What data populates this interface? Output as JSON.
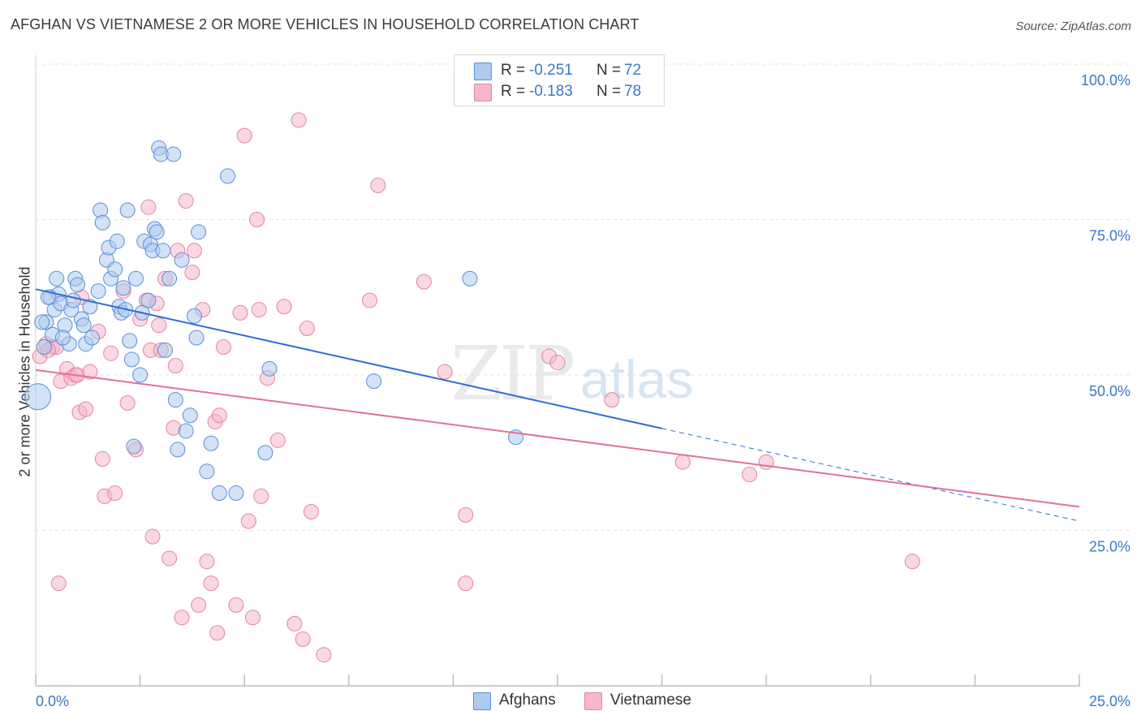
{
  "title": "AFGHAN VS VIETNAMESE 2 OR MORE VEHICLES IN HOUSEHOLD CORRELATION CHART",
  "source": "Source: ZipAtlas.com",
  "watermark": {
    "zip": "ZIP",
    "atlas": "atlas"
  },
  "colors": {
    "afghans_fill": "#aecbef",
    "afghans_stroke": "#5b8fd6",
    "afghans_line": "#2e6fcf",
    "vietnamese_fill": "#f6b7ca",
    "vietnamese_stroke": "#e484a5",
    "vietnamese_line": "#e0709a",
    "axis_text": "#3a78c9",
    "grid": "#e3e3e3"
  },
  "legend_top": [
    {
      "r_label": "R =",
      "r_value": "-0.251",
      "n_label": "N =",
      "n_value": "72"
    },
    {
      "r_label": "R =",
      "r_value": "-0.183",
      "n_label": "N =",
      "n_value": "78"
    }
  ],
  "legend_bottom": [
    "Afghans",
    "Vietnamese"
  ],
  "chart_data": {
    "type": "scatter",
    "title": "AFGHAN VS VIETNAMESE 2 OR MORE VEHICLES IN HOUSEHOLD CORRELATION CHART",
    "ylabel": "2 or more Vehicles in Household",
    "xlabel": "",
    "xlim": [
      0,
      25
    ],
    "ylim": [
      0,
      100
    ],
    "x_tick_labels": [
      "0.0%",
      "25.0%"
    ],
    "y_tick_labels": [
      "100.0%",
      "75.0%",
      "50.0%",
      "25.0%"
    ],
    "y_ticks": [
      100,
      75,
      50,
      25
    ],
    "grid": true,
    "legend_position": "top-center",
    "series": [
      {
        "name": "Afghans",
        "r": -0.251,
        "n": 72,
        "trend": {
          "x0": 0,
          "y0": 63.8,
          "x1": 15,
          "y1": 41.4,
          "dashed_to_x": 25,
          "dashed_to_y": 26.5
        },
        "points": [
          [
            0.05,
            46.5
          ],
          [
            0.2,
            54.5
          ],
          [
            0.25,
            58.5
          ],
          [
            0.35,
            62.5
          ],
          [
            0.4,
            56.5
          ],
          [
            0.45,
            60.5
          ],
          [
            0.5,
            65.5
          ],
          [
            0.55,
            63
          ],
          [
            0.6,
            61.5
          ],
          [
            0.7,
            58
          ],
          [
            0.8,
            55
          ],
          [
            0.85,
            60.5
          ],
          [
            0.95,
            65.5
          ],
          [
            1.0,
            64.5
          ],
          [
            1.1,
            59
          ],
          [
            1.2,
            55
          ],
          [
            1.3,
            61
          ],
          [
            1.35,
            56
          ],
          [
            1.5,
            63.5
          ],
          [
            1.55,
            76.5
          ],
          [
            1.6,
            74.5
          ],
          [
            1.7,
            68.5
          ],
          [
            1.75,
            70.5
          ],
          [
            1.8,
            65.5
          ],
          [
            1.9,
            67
          ],
          [
            1.95,
            71.5
          ],
          [
            2.0,
            61
          ],
          [
            2.05,
            60
          ],
          [
            2.1,
            64
          ],
          [
            2.15,
            60.5
          ],
          [
            2.2,
            76.5
          ],
          [
            2.25,
            55.5
          ],
          [
            2.3,
            52.5
          ],
          [
            2.35,
            38.5
          ],
          [
            2.4,
            65.5
          ],
          [
            2.5,
            50
          ],
          [
            2.6,
            71.5
          ],
          [
            2.7,
            62
          ],
          [
            2.75,
            71
          ],
          [
            2.8,
            70
          ],
          [
            2.85,
            73.5
          ],
          [
            2.9,
            73
          ],
          [
            2.95,
            86.5
          ],
          [
            3.0,
            85.5
          ],
          [
            3.1,
            54
          ],
          [
            3.2,
            65.5
          ],
          [
            3.3,
            85.5
          ],
          [
            3.35,
            46
          ],
          [
            3.4,
            38
          ],
          [
            3.5,
            68.5
          ],
          [
            3.6,
            41
          ],
          [
            3.7,
            43.5
          ],
          [
            3.8,
            59.5
          ],
          [
            3.85,
            56
          ],
          [
            3.9,
            73
          ],
          [
            4.1,
            34.5
          ],
          [
            4.2,
            39
          ],
          [
            4.4,
            31
          ],
          [
            4.6,
            82
          ],
          [
            4.8,
            31
          ],
          [
            5.5,
            37.5
          ],
          [
            5.6,
            51
          ],
          [
            8.1,
            49
          ],
          [
            10.4,
            65.5
          ],
          [
            11.5,
            40
          ],
          [
            0.15,
            58.5
          ],
          [
            0.3,
            62.5
          ],
          [
            0.9,
            62
          ],
          [
            1.15,
            58
          ],
          [
            2.55,
            60
          ],
          [
            3.05,
            70
          ],
          [
            0.65,
            56
          ]
        ]
      },
      {
        "name": "Vietnamese",
        "r": -0.183,
        "n": 78,
        "trend": {
          "x0": 0,
          "y0": 50.8,
          "x1": 25,
          "y1": 28.8
        },
        "points": [
          [
            0.1,
            53
          ],
          [
            0.25,
            55
          ],
          [
            0.4,
            54.5
          ],
          [
            0.5,
            54.5
          ],
          [
            0.55,
            16.5
          ],
          [
            0.6,
            49
          ],
          [
            0.75,
            51
          ],
          [
            0.85,
            49.5
          ],
          [
            0.95,
            50
          ],
          [
            1.0,
            50
          ],
          [
            1.05,
            44
          ],
          [
            1.1,
            62.5
          ],
          [
            1.2,
            44.5
          ],
          [
            1.3,
            50.5
          ],
          [
            1.5,
            57
          ],
          [
            1.6,
            36.5
          ],
          [
            1.65,
            30.5
          ],
          [
            1.8,
            53.5
          ],
          [
            1.9,
            31
          ],
          [
            2.1,
            63.5
          ],
          [
            2.2,
            45.5
          ],
          [
            2.4,
            38
          ],
          [
            2.5,
            59
          ],
          [
            2.65,
            62
          ],
          [
            2.7,
            77
          ],
          [
            2.75,
            54
          ],
          [
            2.8,
            24
          ],
          [
            2.9,
            61.5
          ],
          [
            2.95,
            58
          ],
          [
            3.0,
            54
          ],
          [
            3.1,
            65.5
          ],
          [
            3.2,
            20.5
          ],
          [
            3.3,
            41.5
          ],
          [
            3.35,
            51.5
          ],
          [
            3.4,
            70
          ],
          [
            3.5,
            11
          ],
          [
            3.6,
            78
          ],
          [
            3.75,
            66.5
          ],
          [
            3.8,
            70
          ],
          [
            3.9,
            13
          ],
          [
            4.0,
            60.5
          ],
          [
            4.1,
            20
          ],
          [
            4.2,
            16.5
          ],
          [
            4.3,
            42.5
          ],
          [
            4.4,
            43.5
          ],
          [
            4.5,
            54.5
          ],
          [
            4.8,
            13
          ],
          [
            4.9,
            60
          ],
          [
            5.0,
            88.5
          ],
          [
            5.1,
            26.5
          ],
          [
            5.2,
            11
          ],
          [
            5.3,
            75
          ],
          [
            5.35,
            60.5
          ],
          [
            5.4,
            30.5
          ],
          [
            5.55,
            49.5
          ],
          [
            5.8,
            39.5
          ],
          [
            5.95,
            61
          ],
          [
            6.2,
            10
          ],
          [
            6.3,
            91
          ],
          [
            6.4,
            7.5
          ],
          [
            6.5,
            57.5
          ],
          [
            6.6,
            28
          ],
          [
            6.9,
            5
          ],
          [
            8.0,
            62
          ],
          [
            8.2,
            80.5
          ],
          [
            9.3,
            65
          ],
          [
            9.8,
            50.5
          ],
          [
            10.3,
            27.5
          ],
          [
            10.3,
            16.5
          ],
          [
            12.3,
            53
          ],
          [
            12.5,
            52
          ],
          [
            13.8,
            46
          ],
          [
            15.5,
            36
          ],
          [
            17.1,
            34
          ],
          [
            17.5,
            36
          ],
          [
            21,
            20
          ],
          [
            4.35,
            8.5
          ],
          [
            0.3,
            54
          ]
        ]
      }
    ]
  }
}
